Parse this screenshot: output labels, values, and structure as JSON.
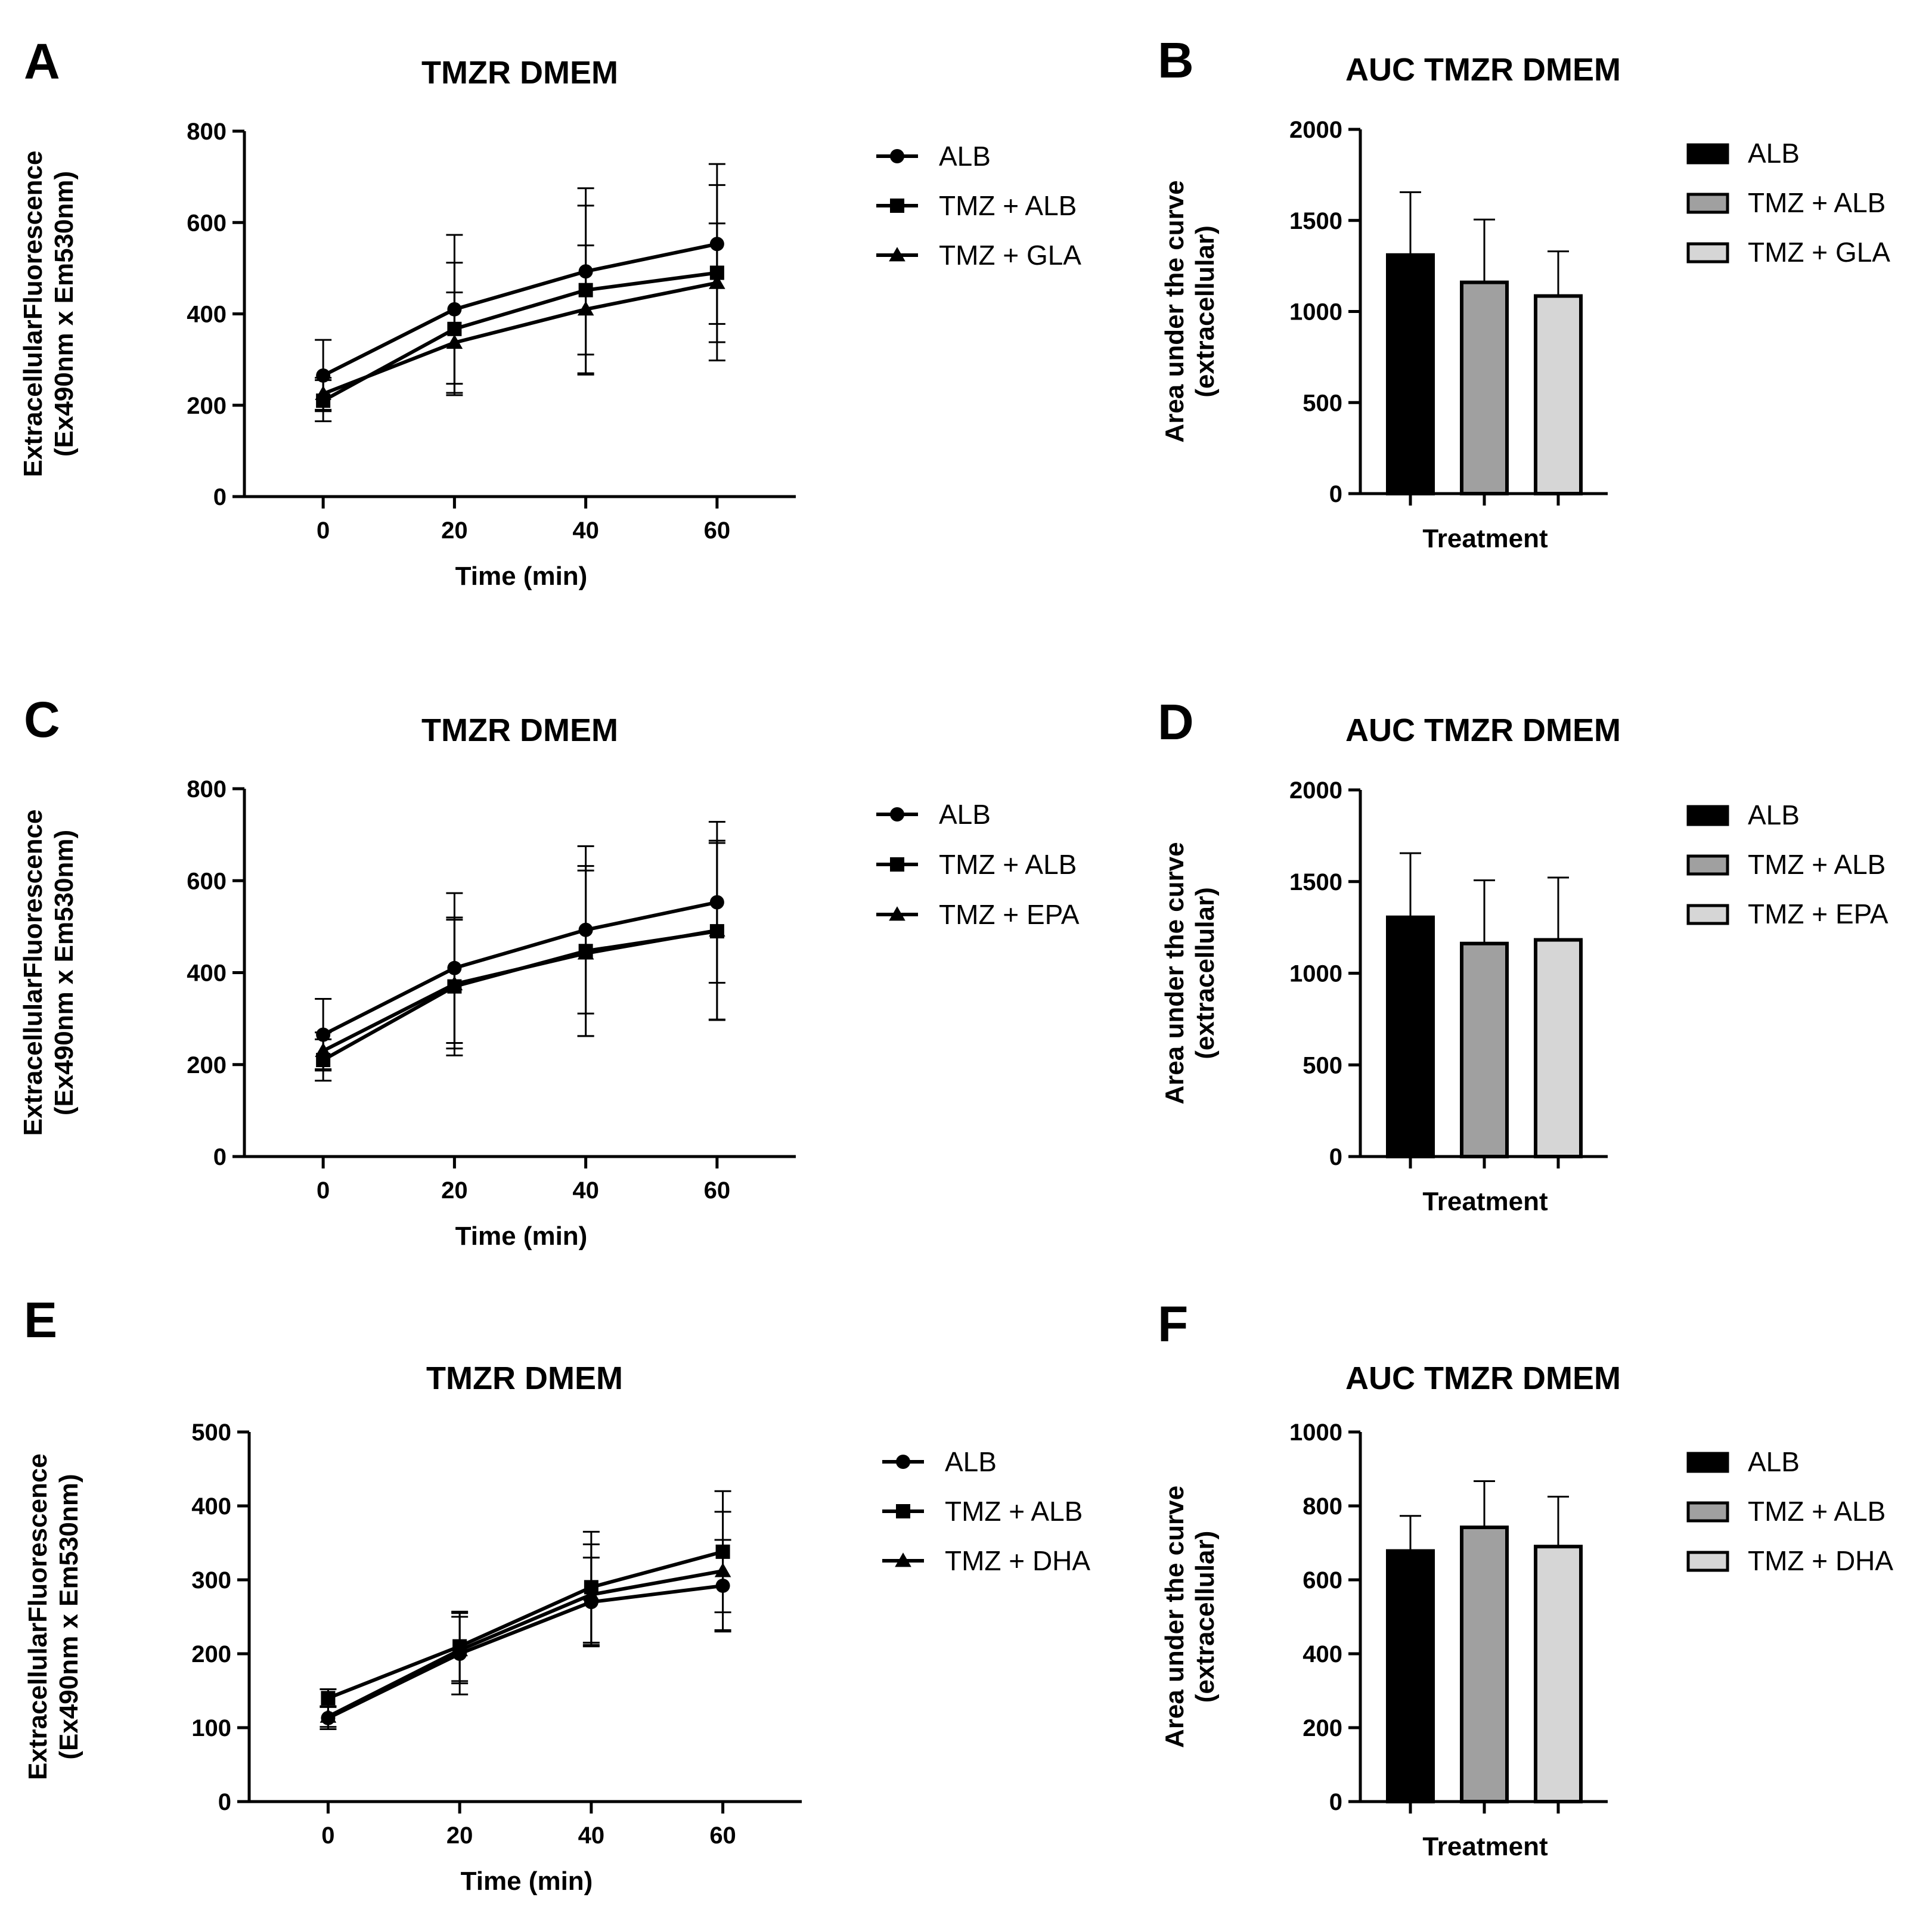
{
  "figure": {
    "panels": [
      "A",
      "B",
      "C",
      "D",
      "E",
      "F"
    ]
  },
  "chart_data": [
    {
      "panel": "A",
      "type": "line",
      "title": "TMZR DMEM",
      "xlabel": "Time (min)",
      "ylabel": [
        "ExtracellularFluorescence",
        "(Ex490nm x Em530nm)"
      ],
      "x": [
        0,
        20,
        40,
        60
      ],
      "xticks": [
        0,
        20,
        40,
        60
      ],
      "xlim": [
        -12,
        72
      ],
      "ylim": [
        0,
        800
      ],
      "yticks": [
        0,
        200,
        400,
        600,
        800
      ],
      "series": [
        {
          "name": "ALB",
          "marker": "circle",
          "values": [
            265,
            410,
            493,
            553
          ],
          "errors": [
            78,
            163,
            182,
            175
          ]
        },
        {
          "name": "TMZ + ALB",
          "marker": "square",
          "values": [
            210,
            367,
            452,
            490
          ],
          "errors": [
            45,
            145,
            185,
            192
          ]
        },
        {
          "name": "TMZ + GLA",
          "marker": "triangle",
          "values": [
            225,
            337,
            410,
            468
          ],
          "errors": [
            35,
            110,
            140,
            130
          ]
        }
      ]
    },
    {
      "panel": "B",
      "type": "bar",
      "title": "AUC TMZR DMEM",
      "xlabel": "Treatment",
      "ylabel": [
        "Area under the curve",
        "(extracellular)"
      ],
      "ylim": [
        0,
        2000
      ],
      "yticks": [
        0,
        500,
        1000,
        1500,
        2000
      ],
      "series": [
        {
          "name": "ALB",
          "value": 1310,
          "error": 345,
          "color": "#000000"
        },
        {
          "name": "TMZ + ALB",
          "value": 1160,
          "error": 345,
          "color": "#a0a0a0"
        },
        {
          "name": "TMZ + GLA",
          "value": 1085,
          "error": 245,
          "color": "#d6d6d6"
        }
      ]
    },
    {
      "panel": "C",
      "type": "line",
      "title": "TMZR DMEM",
      "xlabel": "Time (min)",
      "ylabel": [
        "ExtracellularFluorescence",
        "(Ex490nm x Em530nm)"
      ],
      "x": [
        0,
        20,
        40,
        60
      ],
      "xticks": [
        0,
        20,
        40,
        60
      ],
      "xlim": [
        -12,
        72
      ],
      "ylim": [
        0,
        800
      ],
      "yticks": [
        0,
        200,
        400,
        600,
        800
      ],
      "series": [
        {
          "name": "ALB",
          "marker": "circle",
          "values": [
            265,
            410,
            493,
            553
          ],
          "errors": [
            78,
            163,
            182,
            175
          ]
        },
        {
          "name": "TMZ + ALB",
          "marker": "square",
          "values": [
            210,
            370,
            447,
            490
          ],
          "errors": [
            45,
            150,
            185,
            192
          ]
        },
        {
          "name": "TMZ + EPA",
          "marker": "triangle",
          "values": [
            230,
            375,
            442,
            492
          ],
          "errors": [
            40,
            140,
            180,
            195
          ]
        }
      ]
    },
    {
      "panel": "D",
      "type": "bar",
      "title": "AUC TMZR DMEM",
      "xlabel": "Treatment",
      "ylabel": [
        "Area under the curve",
        "(extracellular)"
      ],
      "ylim": [
        0,
        2000
      ],
      "yticks": [
        0,
        500,
        1000,
        1500,
        2000
      ],
      "series": [
        {
          "name": "ALB",
          "value": 1305,
          "error": 350,
          "color": "#000000"
        },
        {
          "name": "TMZ + ALB",
          "value": 1162,
          "error": 345,
          "color": "#a0a0a0"
        },
        {
          "name": "TMZ + EPA",
          "value": 1182,
          "error": 340,
          "color": "#d6d6d6"
        }
      ]
    },
    {
      "panel": "E",
      "type": "line",
      "title": "TMZR DMEM",
      "xlabel": "Time (min)",
      "ylabel": [
        "ExtracellularFluorescence",
        "(Ex490nm x Em530nm)"
      ],
      "x": [
        0,
        20,
        40,
        60
      ],
      "xticks": [
        0,
        20,
        40,
        60
      ],
      "xlim": [
        -12,
        72
      ],
      "ylim": [
        0,
        500
      ],
      "yticks": [
        0,
        100,
        200,
        300,
        400,
        500
      ],
      "series": [
        {
          "name": "ALB",
          "marker": "circle",
          "values": [
            113,
            200,
            270,
            292
          ],
          "errors": [
            15,
            55,
            60,
            62
          ]
        },
        {
          "name": "TMZ + ALB",
          "marker": "square",
          "values": [
            140,
            210,
            290,
            338
          ],
          "errors": [
            12,
            47,
            75,
            82
          ]
        },
        {
          "name": "TMZ + DHA",
          "marker": "triangle",
          "values": [
            115,
            205,
            280,
            312
          ],
          "errors": [
            14,
            45,
            68,
            80
          ]
        }
      ]
    },
    {
      "panel": "F",
      "type": "bar",
      "title": "AUC TMZR DMEM",
      "xlabel": "Treatment",
      "ylabel": [
        "Area under the curve",
        "(extracellular)"
      ],
      "ylim": [
        0,
        1000
      ],
      "yticks": [
        0,
        200,
        400,
        600,
        800,
        1000
      ],
      "series": [
        {
          "name": "ALB",
          "value": 678,
          "error": 95,
          "color": "#000000"
        },
        {
          "name": "TMZ + ALB",
          "value": 742,
          "error": 125,
          "color": "#a0a0a0"
        },
        {
          "name": "TMZ + DHA",
          "value": 690,
          "error": 135,
          "color": "#d6d6d6"
        }
      ]
    }
  ]
}
